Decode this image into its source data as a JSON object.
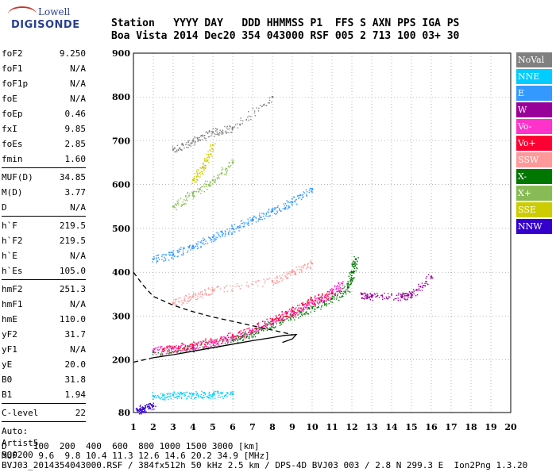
{
  "logo": {
    "line1": "Lowell",
    "line2": "DIGISONDE"
  },
  "header": {
    "labels": [
      "Station",
      "YYYY DAY",
      "DDD HHMMSS",
      "P1",
      "FFS",
      "S",
      "AXN",
      "PPS",
      "IGA",
      "PS"
    ],
    "values": [
      "Boa Vista",
      "2014 Dec20",
      "354 043000",
      "RSF",
      "005",
      "2",
      "713",
      "100",
      "03+",
      "30"
    ]
  },
  "params": {
    "group1": [
      {
        "k": "foF2",
        "v": "9.250"
      },
      {
        "k": "foF1",
        "v": "N/A"
      },
      {
        "k": "foF1p",
        "v": "N/A"
      },
      {
        "k": "foE",
        "v": "N/A"
      },
      {
        "k": "foEp",
        "v": "0.46"
      },
      {
        "k": "fxI",
        "v": "9.85"
      },
      {
        "k": "foEs",
        "v": "2.85"
      },
      {
        "k": "fmin",
        "v": "1.60"
      }
    ],
    "group2": [
      {
        "k": "MUF(D)",
        "v": "34.85"
      },
      {
        "k": "M(D)",
        "v": "3.77"
      },
      {
        "k": "D",
        "v": "N/A"
      }
    ],
    "group3": [
      {
        "k": "h`F",
        "v": "219.5"
      },
      {
        "k": "h`F2",
        "v": "219.5"
      },
      {
        "k": "h`E",
        "v": "N/A"
      },
      {
        "k": "h`Es",
        "v": "105.0"
      }
    ],
    "group4": [
      {
        "k": "hmF2",
        "v": "251.3"
      },
      {
        "k": "hmF1",
        "v": "N/A"
      },
      {
        "k": "hmE",
        "v": "110.0"
      },
      {
        "k": "yF2",
        "v": "31.7"
      },
      {
        "k": "yF1",
        "v": "N/A"
      },
      {
        "k": "yE",
        "v": "20.0"
      },
      {
        "k": "B0",
        "v": "31.8"
      },
      {
        "k": "B1",
        "v": "1.94"
      }
    ],
    "group5": [
      {
        "k": "C-level",
        "v": "22"
      }
    ],
    "autoscale": [
      "Auto:",
      "Artist5",
      "500200"
    ]
  },
  "legend": [
    {
      "label": "NoVal",
      "color": "#808080"
    },
    {
      "label": "NNE",
      "color": "#00ccff"
    },
    {
      "label": "E",
      "color": "#3399ff"
    },
    {
      "label": "W",
      "color": "#990099"
    },
    {
      "label": "Vo-",
      "color": "#ff33cc"
    },
    {
      "label": "Vo+",
      "color": "#ff0033"
    },
    {
      "label": "SSW",
      "color": "#ff9999"
    },
    {
      "label": "X-",
      "color": "#007700"
    },
    {
      "label": "X+",
      "color": "#88bb55"
    },
    {
      "label": "SSE",
      "color": "#cccc00"
    },
    {
      "label": "NNW",
      "color": "#3300cc"
    }
  ],
  "footer": {
    "line1": "D     100  200  400  600  800 1000 1500 3000 [km]",
    "line2": "MUF    9.6  9.8 10.4 11.3 12.6 14.6 20.2 34.9 [MHz]",
    "line3": "BVJ03_2014354043000.RSF / 384fx512h 50 kHz 2.5 km / DPS-4D BVJ03 003 / 2.8 N 299.3 E  Ion2Png 1.3.20"
  },
  "chart_data": {
    "type": "scatter",
    "xlim": [
      1,
      20
    ],
    "ylim": [
      80,
      900
    ],
    "x_ticks": [
      1,
      2,
      3,
      4,
      5,
      6,
      7,
      8,
      9,
      10,
      11,
      12,
      13,
      14,
      15,
      16,
      17,
      18,
      19,
      20
    ],
    "y_ticks": [
      80,
      200,
      300,
      400,
      500,
      600,
      700,
      800,
      900
    ],
    "grid": "dotted",
    "legend_position": "right",
    "traces": [
      {
        "name": "X-",
        "color": "#007700",
        "points": [
          [
            2,
            218
          ],
          [
            4,
            228
          ],
          [
            6,
            245
          ],
          [
            7,
            262
          ],
          [
            8,
            282
          ],
          [
            9,
            300
          ],
          [
            10,
            320
          ],
          [
            11,
            340
          ],
          [
            11.8,
            365
          ],
          [
            12,
            400
          ],
          [
            12.2,
            430
          ]
        ]
      },
      {
        "name": "Vo-",
        "color": "#ff33cc",
        "points": [
          [
            2,
            222
          ],
          [
            3,
            226
          ],
          [
            4,
            232
          ],
          [
            5,
            240
          ],
          [
            6,
            252
          ],
          [
            7,
            268
          ],
          [
            8,
            290
          ],
          [
            9,
            310
          ],
          [
            10,
            330
          ],
          [
            11,
            355
          ],
          [
            11.5,
            375
          ]
        ]
      },
      {
        "name": "Vo+",
        "color": "#ff0033",
        "points": [
          [
            2.5,
            224
          ],
          [
            4,
            234
          ],
          [
            6,
            256
          ],
          [
            8,
            292
          ],
          [
            9,
            312
          ],
          [
            10,
            336
          ],
          [
            11,
            352
          ]
        ]
      },
      {
        "name": "SSW",
        "color": "#ff9999",
        "points": [
          [
            3,
            330
          ],
          [
            4,
            345
          ],
          [
            5,
            360
          ],
          [
            8,
            380
          ],
          [
            9,
            400
          ],
          [
            10,
            420
          ]
        ]
      },
      {
        "name": "W",
        "color": "#990099",
        "points": [
          [
            12.5,
            350
          ],
          [
            13,
            345
          ],
          [
            14.5,
            345
          ],
          [
            15,
            350
          ],
          [
            16,
            390
          ]
        ]
      },
      {
        "name": "NNE",
        "color": "#00ccff",
        "points": [
          [
            2,
            118
          ],
          [
            3,
            120
          ],
          [
            4,
            121
          ],
          [
            5,
            121
          ],
          [
            6,
            122
          ]
        ]
      },
      {
        "name": "E",
        "color": "#3399ff",
        "points": [
          [
            2,
            430
          ],
          [
            3,
            440
          ],
          [
            4,
            460
          ],
          [
            5,
            480
          ],
          [
            6,
            500
          ],
          [
            7,
            520
          ],
          [
            8,
            540
          ],
          [
            9,
            560
          ],
          [
            10,
            590
          ]
        ]
      },
      {
        "name": "X+",
        "color": "#88bb55",
        "points": [
          [
            3,
            550
          ],
          [
            4,
            580
          ],
          [
            5,
            610
          ],
          [
            6,
            650
          ]
        ]
      },
      {
        "name": "SSE",
        "color": "#cccc00",
        "points": [
          [
            4,
            610
          ],
          [
            4.5,
            640
          ],
          [
            5,
            690
          ]
        ]
      },
      {
        "name": "NNW",
        "color": "#3300cc",
        "points": [
          [
            1.2,
            85
          ],
          [
            1.5,
            90
          ],
          [
            2,
            95
          ]
        ]
      },
      {
        "name": "NoVal",
        "color": "#808080",
        "points": [
          [
            3,
            680
          ],
          [
            4,
            700
          ],
          [
            5,
            720
          ],
          [
            6,
            730
          ],
          [
            8,
            800
          ]
        ]
      }
    ],
    "profile_solid": [
      [
        2,
        205
      ],
      [
        3,
        212
      ],
      [
        4,
        220
      ],
      [
        5,
        228
      ],
      [
        6,
        236
      ],
      [
        7,
        244
      ],
      [
        8,
        251
      ],
      [
        8.6,
        256
      ],
      [
        9.2,
        258
      ],
      [
        9.0,
        248
      ],
      [
        8.5,
        240
      ]
    ],
    "profile_dashed_lower": [
      [
        1,
        195
      ],
      [
        2,
        205
      ]
    ],
    "profile_dashed_upper": [
      [
        1,
        400
      ],
      [
        1.5,
        370
      ],
      [
        2,
        345
      ],
      [
        3,
        325
      ],
      [
        4,
        310
      ],
      [
        5,
        298
      ],
      [
        6,
        288
      ],
      [
        7,
        278
      ],
      [
        8,
        268
      ],
      [
        9,
        258
      ]
    ]
  }
}
